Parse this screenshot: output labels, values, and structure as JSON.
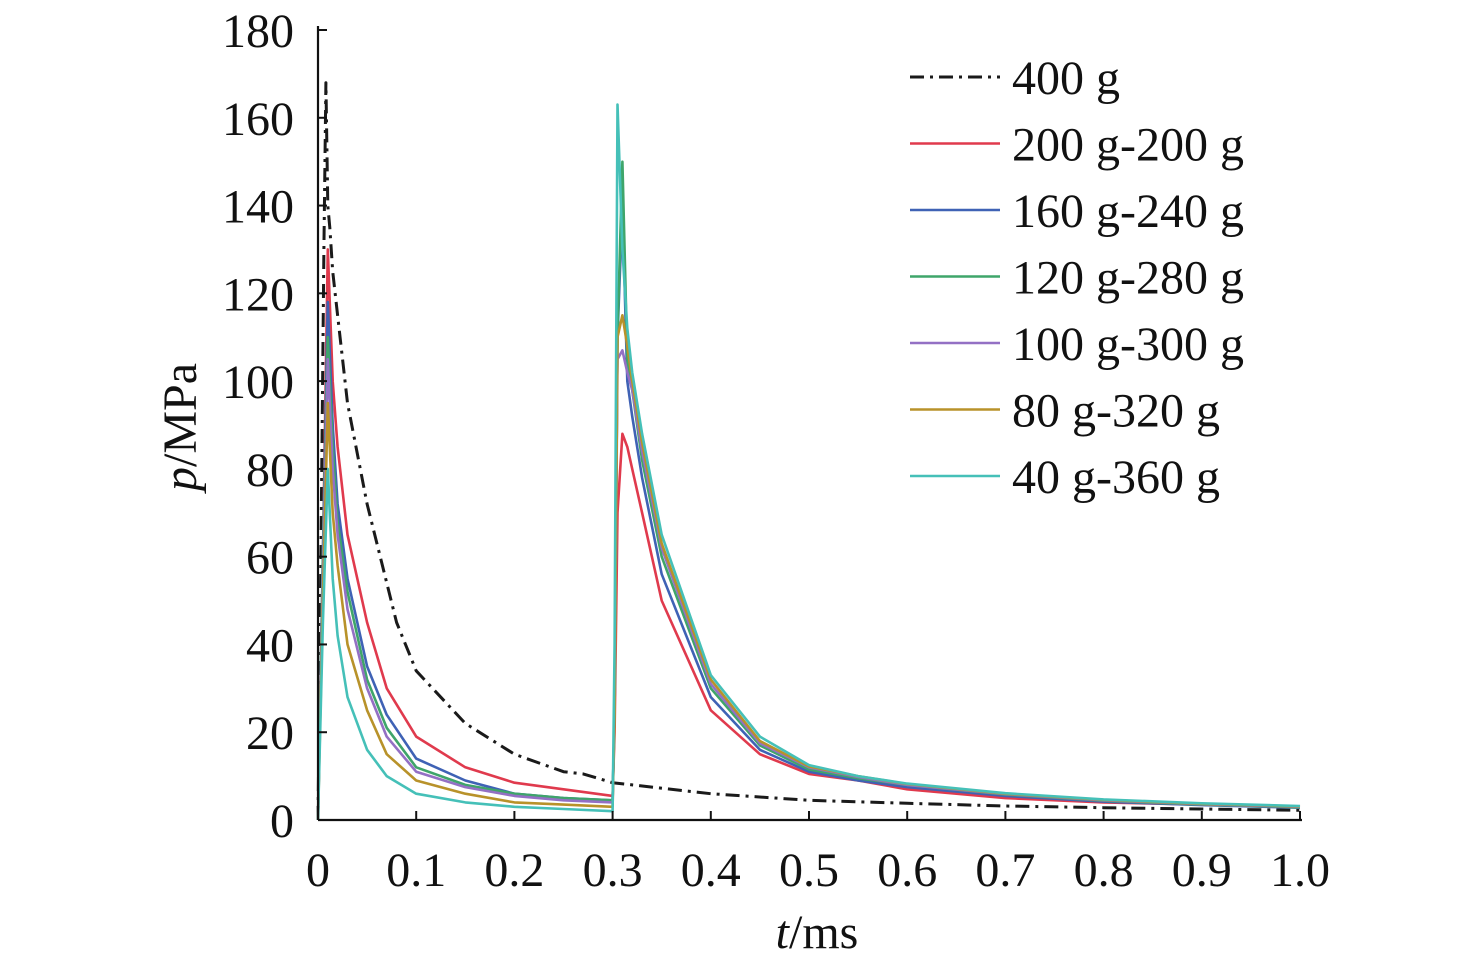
{
  "chart_data": {
    "type": "line",
    "title": "",
    "xlabel": {
      "italic": "t",
      "unit": "/ms"
    },
    "ylabel": {
      "italic": "p",
      "unit": "/MPa"
    },
    "xlim": [
      0,
      1.0
    ],
    "ylim": [
      0,
      180
    ],
    "x_ticks": [
      0,
      0.1,
      0.2,
      0.3,
      0.4,
      0.5,
      0.6,
      0.7,
      0.8,
      0.9,
      1.0
    ],
    "x_tick_labels": [
      "0",
      "0.1",
      "0.2",
      "0.3",
      "0.4",
      "0.5",
      "0.6",
      "0.7",
      "0.8",
      "0.9",
      "1.0"
    ],
    "y_ticks": [
      0,
      20,
      40,
      60,
      80,
      100,
      120,
      140,
      160,
      180
    ],
    "y_tick_labels": [
      "0",
      "20",
      "40",
      "60",
      "80",
      "100",
      "120",
      "140",
      "160",
      "180"
    ],
    "grid": false,
    "legend": {
      "placement": "top-right"
    },
    "series": [
      {
        "name": "400 g",
        "color": "#1a1a1a",
        "dash": "dashdot",
        "x": [
          0,
          0.003,
          0.006,
          0.008,
          0.01,
          0.012,
          0.015,
          0.02,
          0.03,
          0.05,
          0.08,
          0.1,
          0.15,
          0.2,
          0.25,
          0.27,
          0.3,
          0.4,
          0.5,
          0.6,
          0.7,
          0.8,
          0.9,
          1.0
        ],
        "y": [
          0,
          60,
          130,
          168,
          140,
          135,
          125,
          115,
          95,
          72,
          45,
          34,
          22,
          15,
          11,
          10.5,
          8.5,
          6,
          4.5,
          3.8,
          3.2,
          2.8,
          2.5,
          2.2
        ]
      },
      {
        "name": "200 g-200 g",
        "color": "#e03a4d",
        "x": [
          0,
          0.005,
          0.01,
          0.015,
          0.02,
          0.03,
          0.05,
          0.07,
          0.1,
          0.15,
          0.2,
          0.25,
          0.3,
          0.302,
          0.305,
          0.31,
          0.315,
          0.32,
          0.33,
          0.35,
          0.4,
          0.45,
          0.5,
          0.55,
          0.6,
          0.7,
          0.8,
          0.9,
          1.0
        ],
        "y": [
          0,
          60,
          130,
          100,
          85,
          65,
          45,
          30,
          19,
          12,
          8.5,
          7,
          5.5,
          20,
          70,
          88,
          85,
          80,
          70,
          50,
          25,
          15,
          10.5,
          9,
          7,
          5,
          4,
          3.5,
          3
        ]
      },
      {
        "name": "160 g-240 g",
        "color": "#3f62b5",
        "x": [
          0,
          0.005,
          0.01,
          0.015,
          0.02,
          0.03,
          0.05,
          0.07,
          0.1,
          0.15,
          0.2,
          0.25,
          0.3,
          0.302,
          0.305,
          0.31,
          0.315,
          0.32,
          0.33,
          0.35,
          0.4,
          0.45,
          0.5,
          0.55,
          0.6,
          0.7,
          0.8,
          0.9,
          1.0
        ],
        "y": [
          0,
          60,
          118,
          90,
          72,
          55,
          35,
          24,
          14,
          9,
          6,
          5,
          4.5,
          25,
          110,
          140,
          100,
          92,
          78,
          56,
          28,
          16,
          11,
          9,
          7.5,
          5.5,
          4.2,
          3.4,
          2.8
        ]
      },
      {
        "name": "120 g-280 g",
        "color": "#3fa56a",
        "x": [
          0,
          0.005,
          0.01,
          0.015,
          0.02,
          0.03,
          0.05,
          0.07,
          0.1,
          0.15,
          0.2,
          0.25,
          0.3,
          0.302,
          0.305,
          0.31,
          0.315,
          0.32,
          0.33,
          0.35,
          0.4,
          0.45,
          0.5,
          0.55,
          0.6,
          0.7,
          0.8,
          0.9,
          1.0
        ],
        "y": [
          0,
          60,
          110,
          85,
          68,
          52,
          32,
          21,
          12,
          8,
          6,
          5,
          4.5,
          25,
          110,
          150,
          105,
          98,
          82,
          60,
          30,
          17,
          11.5,
          9.5,
          8,
          5.8,
          4.4,
          3.5,
          2.9
        ]
      },
      {
        "name": "100 g-300 g",
        "color": "#9370c4",
        "x": [
          0,
          0.005,
          0.01,
          0.015,
          0.02,
          0.03,
          0.05,
          0.07,
          0.1,
          0.15,
          0.2,
          0.25,
          0.3,
          0.302,
          0.305,
          0.31,
          0.315,
          0.32,
          0.33,
          0.35,
          0.4,
          0.45,
          0.5,
          0.55,
          0.6,
          0.7,
          0.8,
          0.9,
          1.0
        ],
        "y": [
          0,
          55,
          105,
          80,
          65,
          48,
          30,
          19,
          11,
          7.5,
          5.5,
          4.5,
          4,
          25,
          105,
          107,
          102,
          98,
          84,
          62,
          31,
          17.5,
          12,
          9.8,
          8,
          5.9,
          4.5,
          3.6,
          3
        ]
      },
      {
        "name": "80 g-320 g",
        "color": "#b8922a",
        "x": [
          0,
          0.005,
          0.01,
          0.015,
          0.02,
          0.03,
          0.05,
          0.07,
          0.1,
          0.15,
          0.2,
          0.25,
          0.3,
          0.302,
          0.305,
          0.31,
          0.315,
          0.32,
          0.33,
          0.35,
          0.4,
          0.45,
          0.5,
          0.55,
          0.6,
          0.7,
          0.8,
          0.9,
          1.0
        ],
        "y": [
          0,
          50,
          95,
          70,
          58,
          40,
          25,
          15,
          9,
          6,
          4,
          3.5,
          3,
          25,
          110,
          115,
          108,
          100,
          86,
          63,
          32,
          18,
          12.2,
          10,
          8.2,
          6,
          4.6,
          3.7,
          3.1
        ]
      },
      {
        "name": "40 g-360 g",
        "color": "#45c0b8",
        "x": [
          0,
          0.005,
          0.01,
          0.015,
          0.02,
          0.03,
          0.05,
          0.07,
          0.1,
          0.15,
          0.2,
          0.25,
          0.3,
          0.302,
          0.305,
          0.31,
          0.315,
          0.32,
          0.33,
          0.35,
          0.4,
          0.45,
          0.5,
          0.55,
          0.6,
          0.7,
          0.8,
          0.9,
          1.0
        ],
        "y": [
          0,
          45,
          80,
          55,
          42,
          28,
          16,
          10,
          6,
          4,
          3,
          2.5,
          2,
          40,
          163,
          130,
          112,
          102,
          88,
          65,
          33,
          19,
          12.5,
          10,
          8.3,
          6.1,
          4.7,
          3.8,
          3.2
        ]
      }
    ]
  }
}
